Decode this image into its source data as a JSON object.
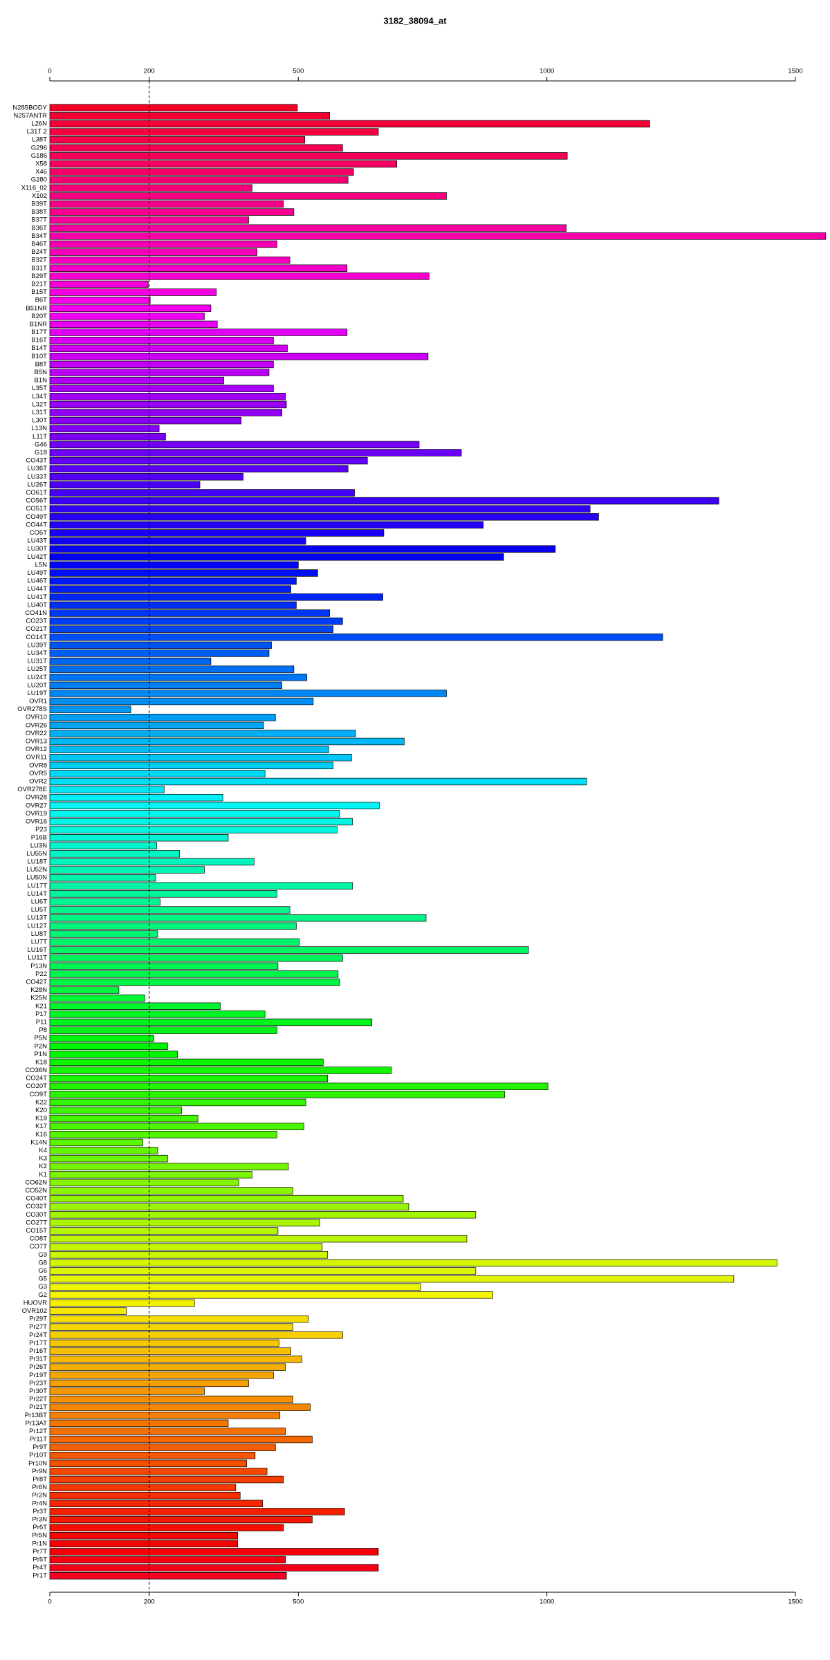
{
  "chart_data": {
    "type": "barh",
    "title": "3182_38094_at",
    "categories": [
      "N285BODY",
      "N257ANTR",
      "L26N",
      "L31T 2",
      "L38T",
      "G296",
      "G186",
      "X58",
      "X46",
      "G280",
      "X116_02",
      "X102",
      "B39T",
      "B38T",
      "B37T",
      "B36T",
      "B34T",
      "B46T",
      "B24T",
      "B32T",
      "B31T",
      "B29T",
      "B21T",
      "B15T",
      "B6T",
      "B51NR",
      "B20T",
      "B1NR",
      "B17T",
      "B16T",
      "B14T",
      "B10T",
      "B8T",
      "B5N",
      "B1N",
      "L35T",
      "L34T",
      "L32T",
      "L31T",
      "L30T",
      "L13N",
      "L11T",
      "G46",
      "G18",
      "CO43T",
      "LU36T",
      "LU33T",
      "LU26T",
      "CO61T",
      "CO56T",
      "CO51T",
      "CO49T",
      "CO44T",
      "CO5T",
      "LU43T",
      "LU30T",
      "LU42T",
      "L5N",
      "LU49T",
      "LU46T",
      "LU44T",
      "LU41T",
      "LU40T",
      "CO41N",
      "CO23T",
      "CO21T",
      "CO14T",
      "LU39T",
      "LU34T",
      "LU31T",
      "LU25T",
      "LU24T",
      "LU20T",
      "LU19T",
      "OVR1",
      "OVR278S",
      "OVR10",
      "OVR26",
      "OVR22",
      "OVR13",
      "OVR12",
      "OVR11",
      "OVR8",
      "OVR5",
      "OVR2",
      "OVR278E",
      "OVR28",
      "OVR27",
      "OVR19",
      "OVR16",
      "P23",
      "P16B",
      "LU3N",
      "LU55N",
      "LU18T",
      "LU52N",
      "LU50N",
      "LU17T",
      "LU14T",
      "LU6T",
      "LU5T",
      "LU13T",
      "LU12T",
      "LU8T",
      "LU7T",
      "LU16T",
      "LU11T",
      "P13N",
      "P22",
      "CO42T",
      "K28N",
      "K25N",
      "K21",
      "P17",
      "P11",
      "P8",
      "P5N",
      "P2N",
      "P1N",
      "K18",
      "CO36N",
      "CO24T",
      "CO20T",
      "CO9T",
      "K22",
      "K20",
      "K19",
      "K17",
      "K16",
      "K14N",
      "K4",
      "K3",
      "K2",
      "K1",
      "CO62N",
      "CO52N",
      "CO40T",
      "CO32T",
      "CO30T",
      "CO27T",
      "CO15T",
      "CO8T",
      "CO7T",
      "G9",
      "G8",
      "G6",
      "G5",
      "G3",
      "G2",
      "HUOVR",
      "OVR102",
      "Pr29T",
      "Pr27T",
      "Pr24T",
      "Pr17T",
      "Pr16T",
      "Pr31T",
      "Pr26T",
      "Pr19T",
      "Pr23T",
      "Pr30T",
      "Pr22T",
      "Pr21T",
      "Pr13BT",
      "Pr13AT",
      "Pr12T",
      "Pr11T",
      "Pr9T",
      "Pr10T",
      "Pr10N",
      "Pr9N",
      "Pr8T",
      "Pr6N",
      "Pr2N",
      "Pr4N",
      "Pr3T",
      "Pr3N",
      "Pr6T",
      "Pr5N",
      "Pr1N",
      "Pr7T",
      "Pr5T",
      "Pr4T",
      "Pr1T"
    ],
    "values": [
      498,
      563,
      1207,
      661,
      513,
      589,
      1041,
      698,
      611,
      600,
      407,
      798,
      470,
      491,
      400,
      1039,
      1561,
      457,
      417,
      483,
      598,
      763,
      198,
      335,
      202,
      324,
      311,
      337,
      598,
      450,
      478,
      761,
      450,
      441,
      350,
      450,
      474,
      476,
      467,
      385,
      220,
      233,
      743,
      828,
      639,
      600,
      389,
      302,
      613,
      1346,
      1087,
      1104,
      872,
      672,
      515,
      1017,
      913,
      500,
      539,
      496,
      485,
      670,
      496,
      563,
      589,
      570,
      1233,
      446,
      441,
      324,
      491,
      517,
      467,
      798,
      530,
      163,
      454,
      430,
      615,
      713,
      561,
      607,
      570,
      433,
      1080,
      230,
      348,
      663,
      583,
      609,
      578,
      359,
      215,
      261,
      411,
      311,
      213,
      609,
      457,
      222,
      483,
      757,
      496,
      217,
      502,
      963,
      589,
      459,
      580,
      583,
      139,
      191,
      343,
      433,
      648,
      457,
      209,
      237,
      257,
      550,
      687,
      559,
      1002,
      915,
      515,
      265,
      298,
      511,
      457,
      187,
      217,
      237,
      480,
      407,
      380,
      489,
      711,
      722,
      857,
      543,
      459,
      839,
      548,
      559,
      1463,
      857,
      1376,
      746,
      891,
      291,
      154,
      520,
      489,
      589,
      461,
      485,
      507,
      474,
      450,
      400,
      311,
      489,
      524,
      463,
      359,
      474,
      528,
      454,
      413,
      396,
      437,
      470,
      374,
      383,
      428,
      593,
      528,
      470,
      378,
      378,
      661,
      474,
      661,
      476
    ],
    "color_scale": "rainbow",
    "xlim": [
      0,
      1500
    ],
    "xticks": [
      0,
      200,
      500,
      1000,
      1500
    ],
    "reference_line": 200
  }
}
